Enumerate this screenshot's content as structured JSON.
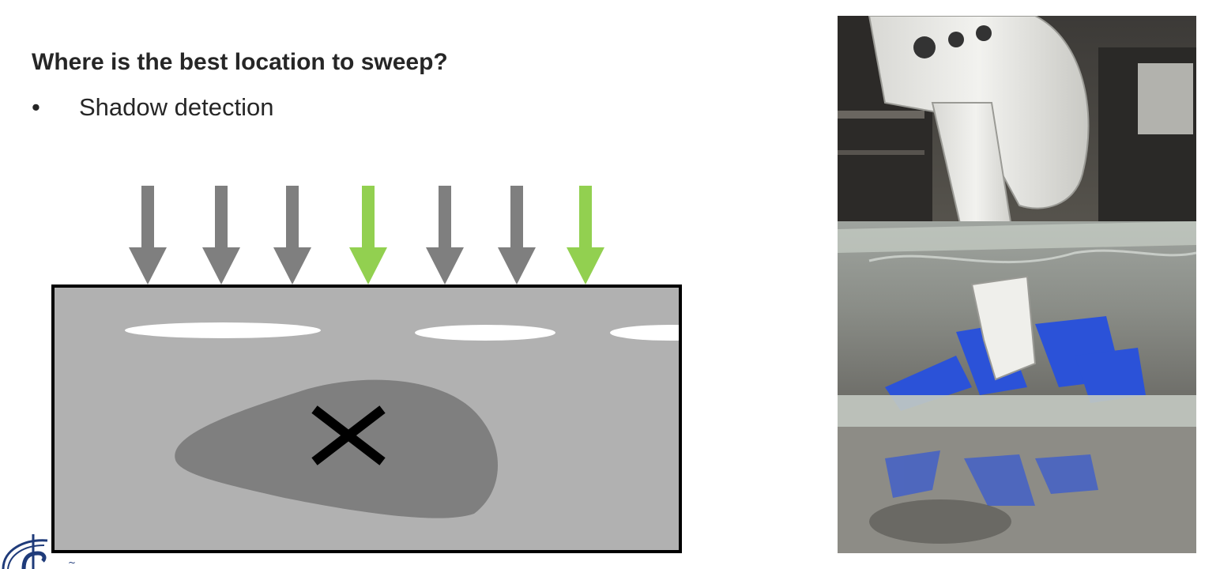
{
  "slide": {
    "title_fragment": "·  ·  ·    ·   ·   ·   ·",
    "heading": "Where is the best location to sweep?",
    "bullets": [
      {
        "marker": "•",
        "text": "Shadow detection"
      }
    ]
  },
  "diagram": {
    "arrows": [
      {
        "color": "#7f7f7f"
      },
      {
        "color": "#7f7f7f"
      },
      {
        "color": "#7f7f7f"
      },
      {
        "color": "#92d050"
      },
      {
        "color": "#7f7f7f"
      },
      {
        "color": "#7f7f7f"
      },
      {
        "color": "#92d050"
      }
    ],
    "marker_label": "✕",
    "colors": {
      "surface": "#b1b1b1",
      "shadow_region": "#7f7f7f",
      "highlight": "#ffffff",
      "border": "#000000",
      "recommended_arrow": "#92d050",
      "default_arrow": "#7f7f7f"
    }
  },
  "photo": {
    "subject": "robot-arm-sweeping-objects-in-water-tank"
  },
  "logo": {
    "icon": "university-seal-icon"
  }
}
